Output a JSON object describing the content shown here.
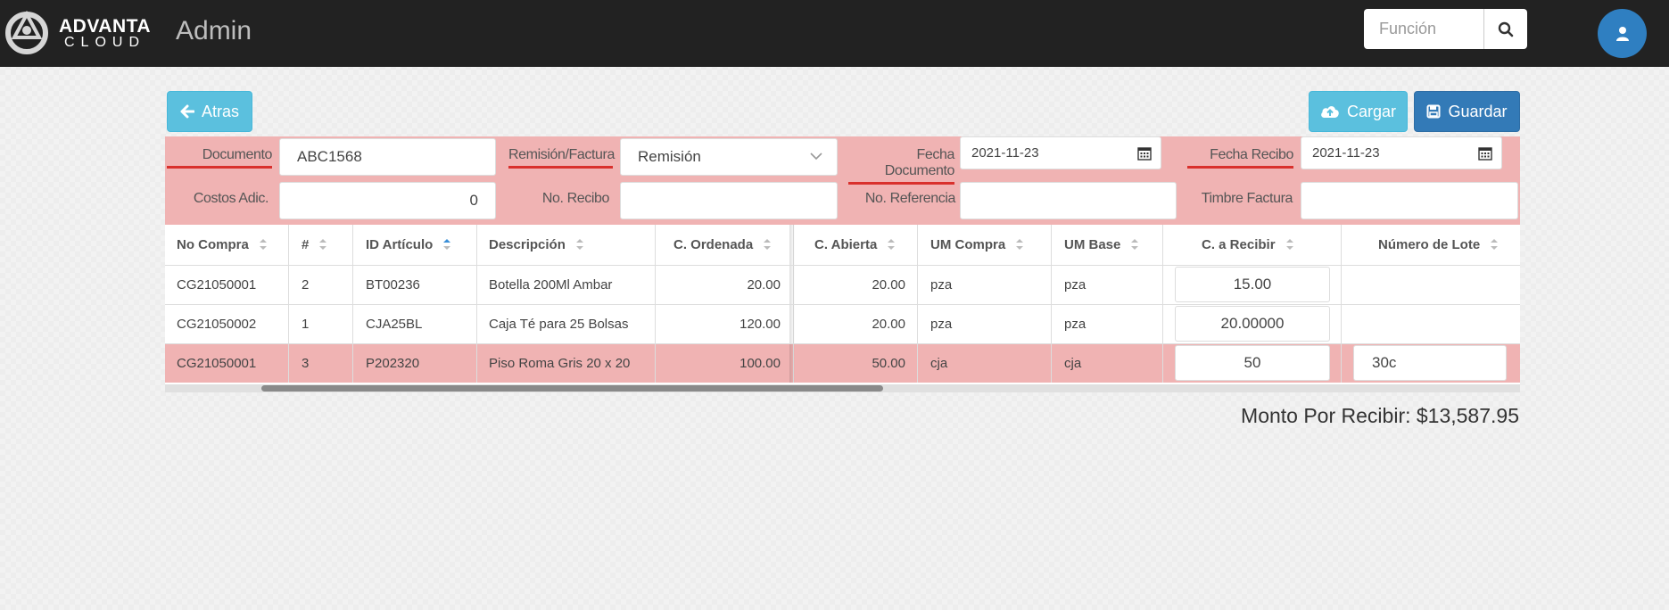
{
  "header": {
    "logo_line1": "ADVANTA",
    "logo_line2": "CLOUD",
    "title": "Admin",
    "search_placeholder": "Función",
    "search_icon": "search-icon",
    "user_icon": "user-icon"
  },
  "toolbar": {
    "back_label": "Atras",
    "upload_label": "Cargar",
    "save_label": "Guardar"
  },
  "form": {
    "documento_label": "Documento",
    "documento_value": "ABC1568",
    "remision_label": "Remisión/Factura",
    "remision_value": "Remisión",
    "fecha_doc_label": "Fecha Documento",
    "fecha_doc_value": "2021-11-23",
    "fecha_recibo_label": "Fecha Recibo",
    "fecha_recibo_value": "2021-11-23",
    "costos_label": "Costos Adic.",
    "costos_value": "0",
    "no_recibo_label": "No. Recibo",
    "no_recibo_value": "",
    "no_referencia_label": "No. Referencia",
    "no_referencia_value": "",
    "timbre_label": "Timbre Factura",
    "timbre_value": ""
  },
  "table": {
    "headers": {
      "no_compra": "No Compra",
      "num": "#",
      "id_articulo": "ID Artículo",
      "descripcion": "Descripción",
      "c_ordenada": "C. Ordenada",
      "c_abierta": "C. Abierta",
      "um_compra": "UM Compra",
      "um_base": "UM Base",
      "c_recibir": "C. a Recibir",
      "num_lote": "Número de Lote"
    },
    "rows": [
      {
        "no_compra": "CG21050001",
        "num": "2",
        "id_articulo": "BT00236",
        "descripcion": "Botella 200Ml Ambar",
        "c_ordenada": "20.00",
        "c_abierta": "20.00",
        "um_compra": "pza",
        "um_base": "pza",
        "c_recibir": "15.00",
        "num_lote": ""
      },
      {
        "no_compra": "CG21050002",
        "num": "1",
        "id_articulo": "CJA25BL",
        "descripcion": "Caja Té para 25 Bolsas",
        "c_ordenada": "120.00",
        "c_abierta": "20.00",
        "um_compra": "pza",
        "um_base": "pza",
        "c_recibir": "20.00000",
        "num_lote": ""
      },
      {
        "no_compra": "CG21050001",
        "num": "3",
        "id_articulo": "P202320",
        "descripcion": "Piso Roma Gris 20 x 20",
        "c_ordenada": "100.00",
        "c_abierta": "50.00",
        "um_compra": "cja",
        "um_base": "cja",
        "c_recibir": "50",
        "num_lote": "30c"
      }
    ]
  },
  "summary": {
    "total_label": "Monto Por Recibir: $13,587.95"
  }
}
